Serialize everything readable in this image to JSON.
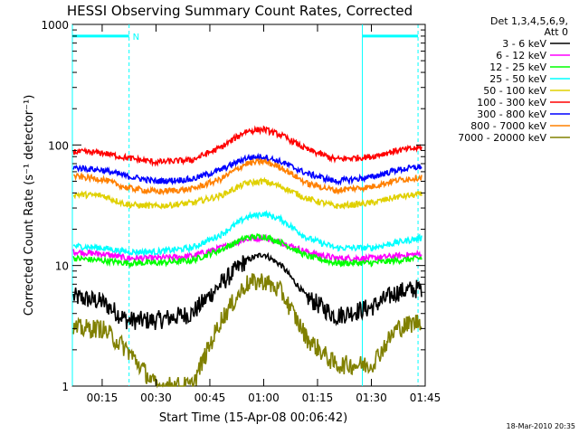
{
  "chart_data": {
    "type": "line",
    "title": "HESSI Observing Summary Count Rates, Corrected",
    "xlabel": "Start Time (15-Apr-08 00:06:42)",
    "ylabel": "Corrected Count Rate (s⁻¹ detector⁻¹)",
    "yscale": "log",
    "ylim": [
      1,
      1000
    ],
    "xlim": [
      "00:06:42",
      "01:45:00"
    ],
    "x_tick_labels": [
      "00:15",
      "00:30",
      "00:45",
      "01:00",
      "01:15",
      "01:30",
      "01:45"
    ],
    "y_tick_labels": [
      "1",
      "10",
      "100",
      "1000"
    ],
    "legend_header": [
      "Det 1,3,4,5,6,9,",
      "Att 0"
    ],
    "legend_placement": "right",
    "footer_timestamp": "18-Mar-2010 20:35",
    "markers": [
      {
        "label": "N",
        "start": "00:06:42",
        "end": "00:22:30",
        "level": 800
      },
      {
        "label": "",
        "start": "01:27:30",
        "end": "01:43:00",
        "level": 800
      }
    ],
    "x_times": [
      "00:07",
      "00:15",
      "00:22",
      "00:30",
      "00:40",
      "00:48",
      "00:55",
      "01:00",
      "01:05",
      "01:12",
      "01:20",
      "01:30",
      "01:37",
      "01:44"
    ],
    "series": [
      {
        "name": "3 - 6 keV",
        "color": "#000000",
        "values": [
          5.5,
          5.0,
          3.5,
          3.5,
          4.0,
          7.0,
          11.0,
          12.5,
          10.0,
          5.5,
          3.8,
          4.5,
          6.0,
          6.5
        ]
      },
      {
        "name": "6 - 12 keV",
        "color": "#ff00ff",
        "values": [
          13,
          12.5,
          11.5,
          11.5,
          12,
          14,
          16.5,
          17,
          15.5,
          13,
          11.5,
          11.5,
          12,
          12.5
        ]
      },
      {
        "name": "12 - 25 keV",
        "color": "#00ff00",
        "values": [
          11.5,
          11,
          10.5,
          10.5,
          11,
          13.5,
          17,
          17.5,
          15.5,
          12,
          10.5,
          10.5,
          11,
          11.5
        ]
      },
      {
        "name": "25 - 50 keV",
        "color": "#00ffff",
        "values": [
          14.5,
          14,
          13,
          13,
          14,
          18,
          25,
          27,
          24,
          17,
          14,
          14,
          15.5,
          17
        ]
      },
      {
        "name": "50 - 100 keV",
        "color": "#e0d000",
        "values": [
          39,
          38,
          32,
          31,
          33,
          38,
          48,
          50,
          45,
          36,
          31,
          33,
          37,
          39
        ]
      },
      {
        "name": "100 - 300 keV",
        "color": "#ff0000",
        "values": [
          88,
          86,
          78,
          72,
          75,
          95,
          130,
          135,
          120,
          92,
          76,
          80,
          90,
          95
        ]
      },
      {
        "name": "300 - 800 keV",
        "color": "#0000ff",
        "values": [
          65,
          62,
          55,
          50,
          52,
          62,
          78,
          80,
          72,
          58,
          50,
          54,
          62,
          66
        ]
      },
      {
        "name": "800 - 7000 keV",
        "color": "#ff8000",
        "values": [
          55,
          52,
          44,
          41,
          43,
          52,
          70,
          73,
          65,
          48,
          42,
          45,
          51,
          54
        ]
      },
      {
        "name": "7000 - 20000 keV",
        "color": "#808000",
        "values": [
          3.0,
          3.0,
          2.0,
          1.0,
          1.0,
          3.5,
          7.0,
          7.5,
          6.0,
          2.5,
          1.5,
          1.5,
          3.0,
          3.5
        ]
      }
    ]
  }
}
